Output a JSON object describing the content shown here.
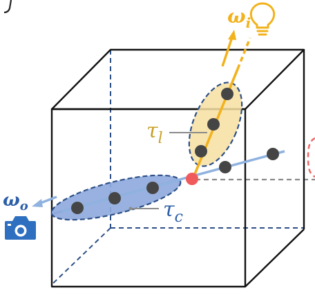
{
  "labels": {
    "omega_i": "ω",
    "omega_i_sub": "i",
    "omega_o": "ω",
    "omega_o_sub": "o",
    "tau_l": "τ",
    "tau_l_sub": "l",
    "tau_c": "τ",
    "tau_c_sub": "c"
  },
  "colors": {
    "cube_edge": "#111111",
    "hidden_edge": "#2c4f86",
    "camera_ray": "#8fb2df",
    "light_ray": "#f2b21c",
    "light_ellipse_fill": "#f7dfa1",
    "camera_ellipse_fill": "#8ea8dd",
    "sample_point": "#454545",
    "intersection_point": "#f15a5a",
    "gray_dashed": "#8a8a8a",
    "camera_icon": "#2f6fc0",
    "bulb_icon": "#f2b21c",
    "partial_object": "#f06666"
  },
  "icons": {
    "camera": "camera-icon",
    "light": "lightbulb-icon"
  }
}
